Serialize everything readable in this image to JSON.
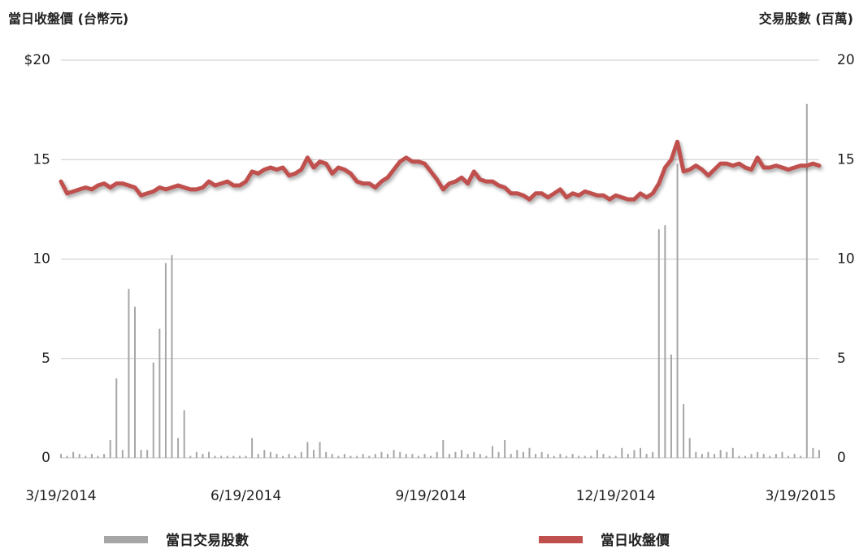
{
  "chart_data": {
    "type": "combo",
    "y_title": "當日收盤價 (台幣元)",
    "y2_title": "交易股數 (百萬)",
    "categories": [
      "3/19/2014",
      null,
      null,
      null,
      null,
      null,
      null,
      null,
      null,
      null,
      null,
      null,
      null,
      null,
      null,
      null,
      null,
      null,
      null,
      null,
      null,
      null,
      null,
      null,
      null,
      null,
      null,
      null,
      null,
      null,
      "6/19/2014",
      null,
      null,
      null,
      null,
      null,
      null,
      null,
      null,
      null,
      null,
      null,
      null,
      null,
      null,
      null,
      null,
      null,
      null,
      null,
      null,
      null,
      null,
      null,
      null,
      null,
      null,
      null,
      null,
      null,
      "9/19/2014",
      null,
      null,
      null,
      null,
      null,
      null,
      null,
      null,
      null,
      null,
      null,
      null,
      null,
      null,
      null,
      null,
      null,
      null,
      null,
      null,
      null,
      null,
      null,
      null,
      null,
      null,
      null,
      null,
      null,
      "12/19/2014",
      null,
      null,
      null,
      null,
      null,
      null,
      null,
      null,
      null,
      null,
      null,
      null,
      null,
      null,
      null,
      null,
      null,
      null,
      null,
      null,
      null,
      null,
      null,
      null,
      null,
      null,
      null,
      null,
      null,
      "3/19/2015",
      null,
      null,
      null
    ],
    "ylim": [
      0,
      20
    ],
    "yticks": [
      0,
      5,
      10,
      15,
      {
        "value": 20,
        "label": "$20"
      }
    ],
    "y2lim": [
      0,
      20
    ],
    "y2ticks": [
      0,
      5,
      10,
      15,
      20
    ],
    "grid": true,
    "legend": "bottom",
    "series": [
      {
        "name": "當日交易股數",
        "type": "bar",
        "axis": "y2",
        "color": "#a6a6a6",
        "values": [
          0.2,
          0.1,
          0.3,
          0.2,
          0.1,
          0.2,
          0.1,
          0.2,
          0.9,
          4.0,
          0.4,
          8.5,
          7.6,
          0.4,
          0.4,
          4.8,
          6.5,
          9.8,
          10.2,
          1.0,
          2.4,
          0.1,
          0.3,
          0.2,
          0.3,
          0.1,
          0.1,
          0.1,
          0.1,
          0.1,
          0.1,
          1.0,
          0.2,
          0.4,
          0.3,
          0.2,
          0.1,
          0.2,
          0.1,
          0.3,
          0.8,
          0.4,
          0.8,
          0.3,
          0.2,
          0.1,
          0.2,
          0.1,
          0.1,
          0.2,
          0.1,
          0.2,
          0.3,
          0.2,
          0.4,
          0.3,
          0.2,
          0.2,
          0.1,
          0.2,
          0.1,
          0.3,
          0.9,
          0.2,
          0.3,
          0.4,
          0.2,
          0.3,
          0.2,
          0.1,
          0.6,
          0.3,
          0.9,
          0.2,
          0.4,
          0.3,
          0.5,
          0.2,
          0.3,
          0.2,
          0.1,
          0.2,
          0.1,
          0.2,
          0.1,
          0.1,
          0.1,
          0.4,
          0.2,
          0.1,
          0.1,
          0.5,
          0.2,
          0.4,
          0.5,
          0.2,
          0.3,
          11.5,
          11.7,
          5.2,
          14.8,
          2.7,
          1.0,
          0.3,
          0.2,
          0.3,
          0.2,
          0.4,
          0.3,
          0.5,
          0.1,
          0.1,
          0.2,
          0.3,
          0.2,
          0.1,
          0.2,
          0.3,
          0.1,
          0.2,
          0.1,
          17.8,
          0.5,
          0.4
        ]
      },
      {
        "name": "當日收盤價",
        "type": "line",
        "axis": "y",
        "color": "#c0504d",
        "values": [
          13.9,
          13.3,
          13.4,
          13.5,
          13.6,
          13.5,
          13.7,
          13.8,
          13.6,
          13.8,
          13.8,
          13.7,
          13.6,
          13.2,
          13.3,
          13.4,
          13.6,
          13.5,
          13.6,
          13.7,
          13.6,
          13.5,
          13.5,
          13.6,
          13.9,
          13.7,
          13.8,
          13.9,
          13.7,
          13.7,
          13.9,
          14.4,
          14.3,
          14.5,
          14.6,
          14.5,
          14.6,
          14.2,
          14.3,
          14.5,
          15.1,
          14.6,
          14.9,
          14.8,
          14.3,
          14.6,
          14.5,
          14.3,
          13.9,
          13.8,
          13.8,
          13.6,
          13.9,
          14.1,
          14.5,
          14.9,
          15.1,
          14.9,
          14.9,
          14.8,
          14.4,
          14.0,
          13.5,
          13.8,
          13.9,
          14.1,
          13.8,
          14.4,
          14.0,
          13.9,
          13.9,
          13.7,
          13.6,
          13.3,
          13.3,
          13.2,
          13.0,
          13.3,
          13.3,
          13.1,
          13.3,
          13.5,
          13.1,
          13.3,
          13.2,
          13.4,
          13.3,
          13.2,
          13.2,
          13.0,
          13.2,
          13.1,
          13.0,
          13.0,
          13.3,
          13.1,
          13.3,
          13.8,
          14.6,
          15.0,
          15.9,
          14.4,
          14.5,
          14.7,
          14.5,
          14.2,
          14.5,
          14.8,
          14.8,
          14.7,
          14.8,
          14.6,
          14.5,
          15.1,
          14.6,
          14.6,
          14.7,
          14.6,
          14.5,
          14.6,
          14.7,
          14.7,
          14.8,
          14.7
        ]
      }
    ]
  }
}
